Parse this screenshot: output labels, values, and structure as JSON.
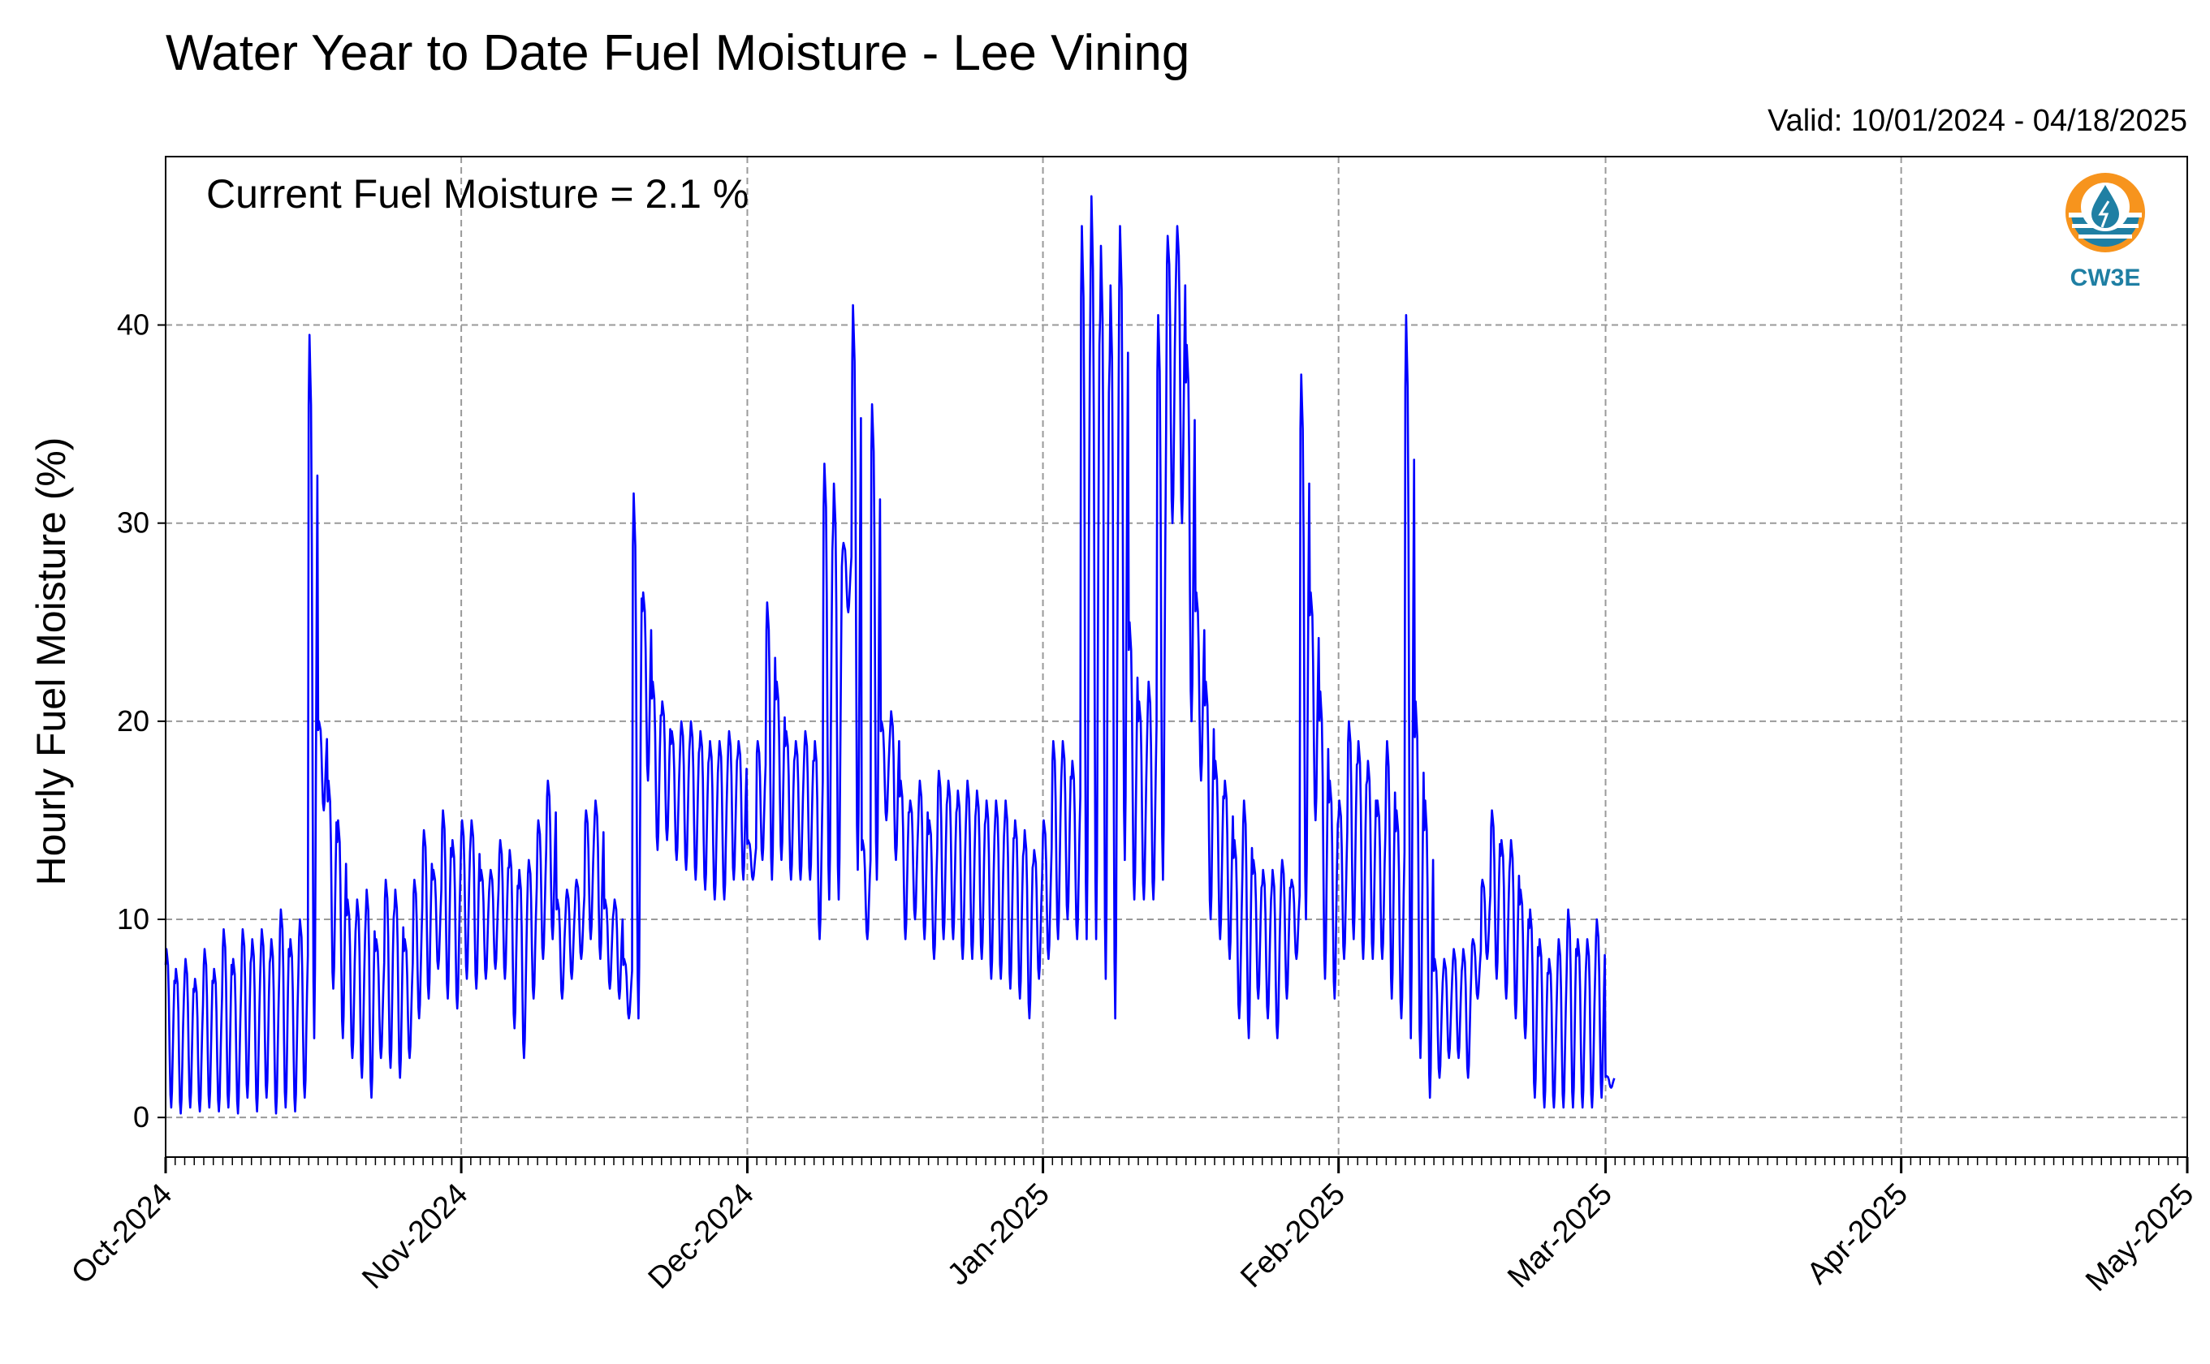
{
  "chart_data": {
    "type": "line",
    "title": "Water Year to Date Fuel Moisture - Lee Vining",
    "subtitle": "Valid: 10/01/2024 - 04/18/2025",
    "annotation": "Current Fuel Moisture = 2.1 %",
    "ylabel": "Hourly Fuel Moisture (%)",
    "xlabel": "",
    "xlim": [
      "2024-10-01",
      "2025-05-01"
    ],
    "ylim": [
      -2,
      48.5
    ],
    "yticks": [
      0,
      10,
      20,
      30,
      40
    ],
    "x_tick_labels": [
      "Oct-2024",
      "Nov-2024",
      "Dec-2024",
      "Jan-2025",
      "Feb-2025",
      "Mar-2025",
      "Apr-2025",
      "May-2025"
    ],
    "grid": true,
    "line_color": "#0000ff",
    "daily_minmax": [
      [
        0.5,
        8.5
      ],
      [
        0.2,
        7.5
      ],
      [
        0.5,
        8
      ],
      [
        0.3,
        7
      ],
      [
        0.5,
        8.5
      ],
      [
        0.3,
        7.5
      ],
      [
        0.5,
        9.5
      ],
      [
        0.2,
        8
      ],
      [
        1,
        9.5
      ],
      [
        0.3,
        9
      ],
      [
        1,
        9.5
      ],
      [
        0.2,
        9
      ],
      [
        0.5,
        10.5
      ],
      [
        0.3,
        9
      ],
      [
        1,
        10
      ],
      [
        4,
        39.5
      ],
      [
        15.5,
        20
      ],
      [
        6.5,
        17
      ],
      [
        4,
        15
      ],
      [
        3,
        11
      ],
      [
        2,
        11
      ],
      [
        1,
        11.5
      ],
      [
        3,
        9
      ],
      [
        2.5,
        12
      ],
      [
        2,
        11.5
      ],
      [
        3,
        9
      ],
      [
        5,
        12
      ],
      [
        6,
        14.5
      ],
      [
        7.5,
        12.5
      ],
      [
        6,
        15.5
      ],
      [
        5.5,
        14
      ],
      [
        7,
        15
      ],
      [
        6.5,
        15
      ],
      [
        7,
        12.5
      ],
      [
        7.5,
        12.5
      ],
      [
        7,
        14
      ],
      [
        4.5,
        13.5
      ],
      [
        3,
        12.5
      ],
      [
        6,
        13
      ],
      [
        8,
        15
      ],
      [
        9,
        17
      ],
      [
        6,
        11
      ],
      [
        7,
        11.5
      ],
      [
        8,
        12
      ],
      [
        9,
        15.5
      ],
      [
        8,
        16
      ],
      [
        6.5,
        11
      ],
      [
        6,
        11
      ],
      [
        5,
        8
      ],
      [
        5,
        31.5
      ],
      [
        17,
        26.5
      ],
      [
        13.5,
        22
      ],
      [
        14,
        21
      ],
      [
        13,
        19.5
      ],
      [
        12.5,
        20
      ],
      [
        12,
        20
      ],
      [
        11.5,
        19.5
      ],
      [
        11,
        19
      ],
      [
        11,
        19
      ],
      [
        12,
        19.5
      ],
      [
        12,
        19
      ],
      [
        12,
        14
      ],
      [
        13,
        19
      ],
      [
        12,
        26
      ],
      [
        13,
        22
      ],
      [
        12,
        19.5
      ],
      [
        12,
        19
      ],
      [
        12,
        19.5
      ],
      [
        9,
        19
      ],
      [
        11,
        33
      ],
      [
        11,
        32
      ],
      [
        25.5,
        29
      ],
      [
        12.5,
        41
      ],
      [
        9,
        14
      ],
      [
        12,
        36
      ],
      [
        15,
        20
      ],
      [
        13,
        20.5
      ],
      [
        9,
        17
      ],
      [
        10,
        16
      ],
      [
        9,
        17
      ],
      [
        8,
        15
      ],
      [
        9,
        17.5
      ],
      [
        9,
        17
      ],
      [
        8,
        16.5
      ],
      [
        8,
        17
      ],
      [
        8,
        16.5
      ],
      [
        7,
        16
      ],
      [
        7,
        16
      ],
      [
        6.5,
        16
      ],
      [
        6,
        15
      ],
      [
        5,
        14.5
      ],
      [
        7,
        13.5
      ],
      [
        8,
        15
      ],
      [
        9,
        19
      ],
      [
        10,
        19
      ],
      [
        9,
        18
      ],
      [
        9,
        45
      ],
      [
        9,
        46.5
      ],
      [
        7,
        44
      ],
      [
        5,
        42
      ],
      [
        13,
        45
      ],
      [
        11,
        25
      ],
      [
        11,
        21
      ],
      [
        11,
        22
      ],
      [
        12,
        40.5
      ],
      [
        30,
        44.5
      ],
      [
        30,
        45
      ],
      [
        20,
        39
      ],
      [
        17,
        26.5
      ],
      [
        10,
        22
      ],
      [
        9,
        18
      ],
      [
        8,
        17
      ],
      [
        5,
        14
      ],
      [
        4,
        16
      ],
      [
        6,
        13
      ],
      [
        5,
        12.5
      ],
      [
        4,
        12.5
      ],
      [
        6,
        13
      ],
      [
        8,
        12
      ],
      [
        10,
        37.5
      ],
      [
        15,
        26.5
      ],
      [
        7,
        21.5
      ],
      [
        6,
        17
      ],
      [
        8,
        16
      ],
      [
        9,
        20
      ],
      [
        8,
        19
      ],
      [
        8,
        18
      ],
      [
        8,
        16
      ],
      [
        6,
        19
      ],
      [
        5,
        15.5
      ],
      [
        4,
        40.5
      ],
      [
        3,
        21
      ],
      [
        1,
        16
      ],
      [
        2,
        8
      ],
      [
        3,
        8
      ],
      [
        3,
        8.5
      ],
      [
        2,
        8.5
      ],
      [
        6,
        9
      ],
      [
        8,
        12
      ],
      [
        7,
        15.5
      ],
      [
        6,
        14
      ],
      [
        5,
        14
      ],
      [
        4,
        11.5
      ],
      [
        1,
        10.5
      ],
      [
        0.5,
        9
      ],
      [
        0.5,
        8
      ],
      [
        0.5,
        9
      ],
      [
        0.5,
        10.5
      ],
      [
        0.5,
        9
      ],
      [
        0.5,
        9
      ],
      [
        1,
        10
      ],
      [
        1.5,
        2.1
      ]
    ]
  },
  "logo": {
    "text": "CW3E",
    "icon": "water-drop-sun-icon",
    "orange": "#f7941d",
    "blue": "#1f7fa3"
  }
}
